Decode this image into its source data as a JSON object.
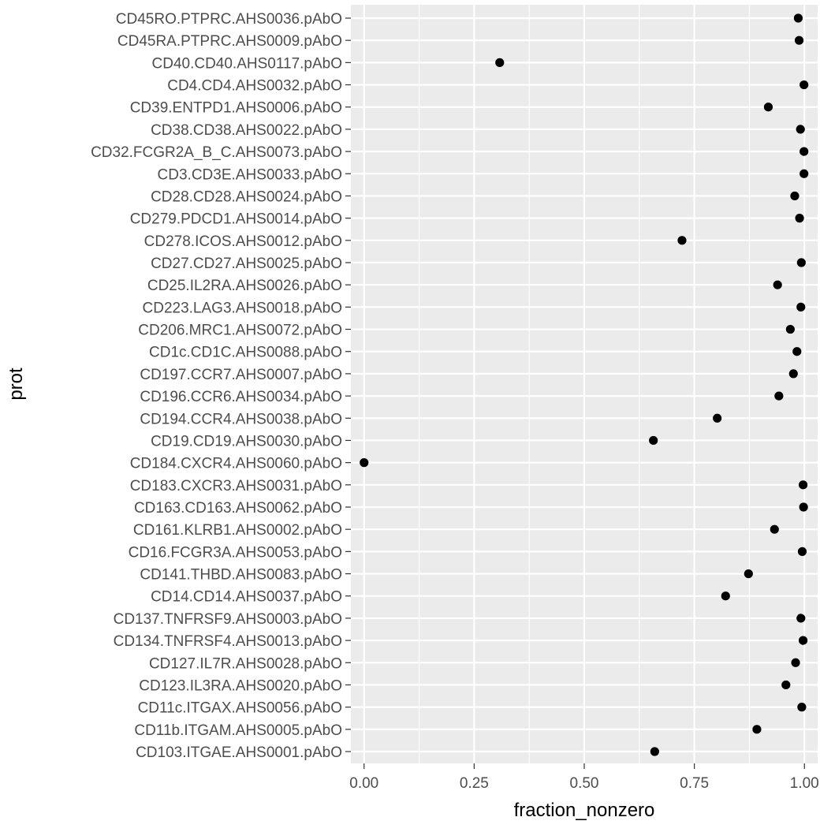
{
  "chart_data": {
    "type": "scatter",
    "xlabel": "fraction_nonzero",
    "ylabel": "prot",
    "xlim": [
      -0.03,
      1.03
    ],
    "x_ticks": [
      0.0,
      0.25,
      0.5,
      0.75,
      1.0
    ],
    "x_tick_labels": [
      "0.00",
      "0.25",
      "0.50",
      "0.75",
      "1.00"
    ],
    "grid": true,
    "background": "#ebebeb",
    "grid_color": "#ffffff",
    "point_color": "#000000",
    "points": [
      {
        "prot": "CD45RO.PTPRC.AHS0036.pAbO",
        "fraction_nonzero": 0.986
      },
      {
        "prot": "CD45RA.PTPRC.AHS0009.pAbO",
        "fraction_nonzero": 0.988
      },
      {
        "prot": "CD40.CD40.AHS0117.pAbO",
        "fraction_nonzero": 0.308
      },
      {
        "prot": "CD4.CD4.AHS0032.pAbO",
        "fraction_nonzero": 0.999
      },
      {
        "prot": "CD39.ENTPD1.AHS0006.pAbO",
        "fraction_nonzero": 0.918
      },
      {
        "prot": "CD38.CD38.AHS0022.pAbO",
        "fraction_nonzero": 0.991
      },
      {
        "prot": "CD32.FCGR2A_B_C.AHS0073.pAbO",
        "fraction_nonzero": 0.999
      },
      {
        "prot": "CD3.CD3E.AHS0033.pAbO",
        "fraction_nonzero": 0.999
      },
      {
        "prot": "CD28.CD28.AHS0024.pAbO",
        "fraction_nonzero": 0.978
      },
      {
        "prot": "CD279.PDCD1.AHS0014.pAbO",
        "fraction_nonzero": 0.989
      },
      {
        "prot": "CD278.ICOS.AHS0012.pAbO",
        "fraction_nonzero": 0.722
      },
      {
        "prot": "CD27.CD27.AHS0025.pAbO",
        "fraction_nonzero": 0.993
      },
      {
        "prot": "CD25.IL2RA.AHS0026.pAbO",
        "fraction_nonzero": 0.939
      },
      {
        "prot": "CD223.LAG3.AHS0018.pAbO",
        "fraction_nonzero": 0.992
      },
      {
        "prot": "CD206.MRC1.AHS0072.pAbO",
        "fraction_nonzero": 0.968
      },
      {
        "prot": "CD1c.CD1C.AHS0088.pAbO",
        "fraction_nonzero": 0.983
      },
      {
        "prot": "CD197.CCR7.AHS0007.pAbO",
        "fraction_nonzero": 0.975
      },
      {
        "prot": "CD196.CCR6.AHS0034.pAbO",
        "fraction_nonzero": 0.942
      },
      {
        "prot": "CD194.CCR4.AHS0038.pAbO",
        "fraction_nonzero": 0.802
      },
      {
        "prot": "CD19.CD19.AHS0030.pAbO",
        "fraction_nonzero": 0.657
      },
      {
        "prot": "CD184.CXCR4.AHS0060.pAbO",
        "fraction_nonzero": 0.0
      },
      {
        "prot": "CD183.CXCR3.AHS0031.pAbO",
        "fraction_nonzero": 0.997
      },
      {
        "prot": "CD163.CD163.AHS0062.pAbO",
        "fraction_nonzero": 0.998
      },
      {
        "prot": "CD161.KLRB1.AHS0002.pAbO",
        "fraction_nonzero": 0.932
      },
      {
        "prot": "CD16.FCGR3A.AHS0053.pAbO",
        "fraction_nonzero": 0.995
      },
      {
        "prot": "CD141.THBD.AHS0083.pAbO",
        "fraction_nonzero": 0.873
      },
      {
        "prot": "CD14.CD14.AHS0037.pAbO",
        "fraction_nonzero": 0.821
      },
      {
        "prot": "CD137.TNFRSF9.AHS0003.pAbO",
        "fraction_nonzero": 0.992
      },
      {
        "prot": "CD134.TNFRSF4.AHS0013.pAbO",
        "fraction_nonzero": 0.997
      },
      {
        "prot": "CD127.IL7R.AHS0028.pAbO",
        "fraction_nonzero": 0.98
      },
      {
        "prot": "CD123.IL3RA.AHS0020.pAbO",
        "fraction_nonzero": 0.958
      },
      {
        "prot": "CD11c.ITGAX.AHS0056.pAbO",
        "fraction_nonzero": 0.994
      },
      {
        "prot": "CD11b.ITGAM.AHS0005.pAbO",
        "fraction_nonzero": 0.892
      },
      {
        "prot": "CD103.ITGAE.AHS0001.pAbO",
        "fraction_nonzero": 0.66
      }
    ]
  }
}
